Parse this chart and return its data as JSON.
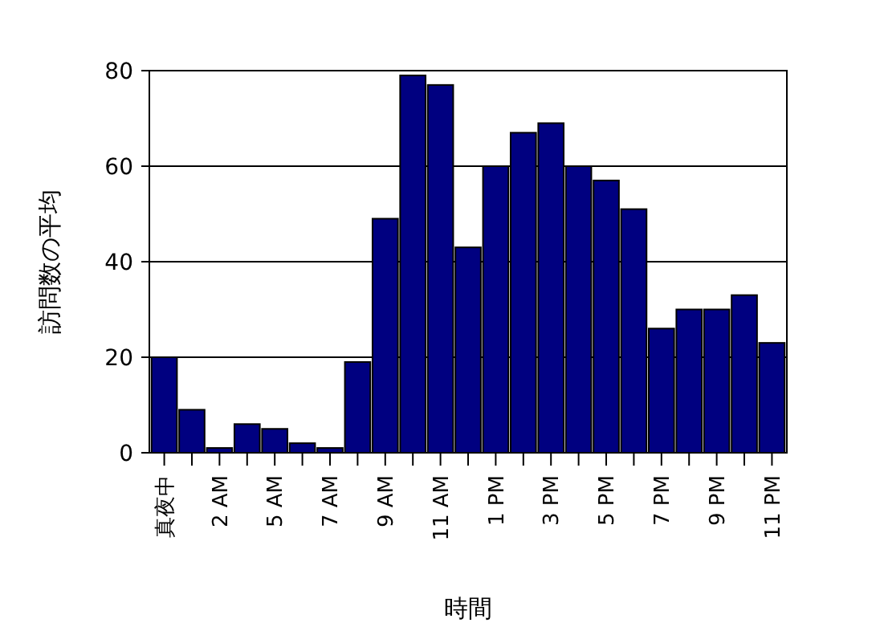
{
  "chart_data": {
    "type": "bar",
    "xlabel": "時間",
    "ylabel": "訪問数の平均",
    "categories": [
      "真夜中",
      null,
      "2 AM",
      null,
      "5 AM",
      null,
      "7 AM",
      null,
      "9 AM",
      null,
      "11 AM",
      null,
      "1 PM",
      null,
      "3 PM",
      null,
      "5 PM",
      null,
      "7 PM",
      null,
      "9 PM",
      null,
      "11 PM"
    ],
    "values": [
      20,
      9,
      1,
      6,
      5,
      2,
      1,
      19,
      49,
      79,
      77,
      43,
      60,
      67,
      69,
      60,
      57,
      51,
      26,
      30,
      30,
      33,
      23
    ],
    "color": "#000080",
    "ylim": [
      0,
      80
    ],
    "yticks": [
      0,
      20,
      40,
      60,
      80
    ],
    "grid": "y"
  }
}
